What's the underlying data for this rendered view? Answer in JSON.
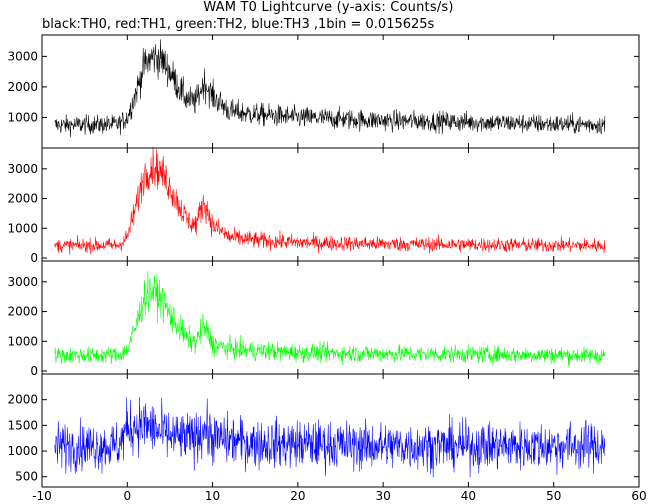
{
  "title": "WAM T0 Lightcurve (y-axis: Counts/s)",
  "subtitle": "black:TH0, red:TH1, green:TH2, blue:TH3 ,1bin = 0.015625s",
  "chart_data": {
    "type": "line",
    "x_range": [
      -10,
      60
    ],
    "x_ticks": [
      -10,
      0,
      10,
      20,
      30,
      40,
      50,
      60
    ],
    "data_x_range": [
      -8.5,
      56
    ],
    "bin_seconds": 0.015625,
    "panels": [
      {
        "name": "TH0",
        "color": "#000000",
        "ylim": [
          0,
          3700
        ],
        "y_ticks": [
          1000,
          2000,
          3000
        ],
        "baseline": 750,
        "noise": 220,
        "envelope": [
          [
            -8.5,
            750
          ],
          [
            -1,
            770
          ],
          [
            0,
            1000
          ],
          [
            1,
            1800
          ],
          [
            2,
            2700
          ],
          [
            3,
            3000
          ],
          [
            4,
            2900
          ],
          [
            5,
            2500
          ],
          [
            6,
            2000
          ],
          [
            7,
            1600
          ],
          [
            8,
            1500
          ],
          [
            9,
            2150
          ],
          [
            10,
            1700
          ],
          [
            12,
            1200
          ],
          [
            15,
            1100
          ],
          [
            20,
            1000
          ],
          [
            30,
            900
          ],
          [
            40,
            850
          ],
          [
            50,
            780
          ],
          [
            56,
            760
          ]
        ]
      },
      {
        "name": "TH1",
        "color": "#ff0000",
        "ylim": [
          -100,
          3700
        ],
        "y_ticks": [
          0,
          1000,
          2000,
          3000
        ],
        "baseline": 420,
        "noise": 170,
        "envelope": [
          [
            -8.5,
            420
          ],
          [
            -1,
            430
          ],
          [
            0,
            700
          ],
          [
            1,
            1700
          ],
          [
            2,
            2800
          ],
          [
            3,
            3100
          ],
          [
            4,
            2900
          ],
          [
            5,
            2400
          ],
          [
            6,
            1800
          ],
          [
            7,
            1300
          ],
          [
            8,
            1100
          ],
          [
            9,
            1900
          ],
          [
            10,
            1100
          ],
          [
            12,
            700
          ],
          [
            15,
            600
          ],
          [
            20,
            520
          ],
          [
            30,
            470
          ],
          [
            40,
            450
          ],
          [
            50,
            430
          ],
          [
            56,
            420
          ]
        ]
      },
      {
        "name": "TH2",
        "color": "#00ff00",
        "ylim": [
          -100,
          3700
        ],
        "y_ticks": [
          0,
          1000,
          2000,
          3000
        ],
        "baseline": 520,
        "noise": 200,
        "envelope": [
          [
            -8.5,
            520
          ],
          [
            -1,
            540
          ],
          [
            0,
            700
          ],
          [
            1,
            1500
          ],
          [
            2,
            2500
          ],
          [
            3,
            2700
          ],
          [
            4,
            2400
          ],
          [
            5,
            1900
          ],
          [
            6,
            1500
          ],
          [
            7,
            1100
          ],
          [
            8,
            950
          ],
          [
            9,
            1500
          ],
          [
            10,
            900
          ],
          [
            12,
            750
          ],
          [
            15,
            680
          ],
          [
            20,
            620
          ],
          [
            30,
            580
          ],
          [
            40,
            560
          ],
          [
            50,
            540
          ],
          [
            56,
            520
          ]
        ]
      },
      {
        "name": "TH3",
        "color": "#0000ff",
        "ylim": [
          300,
          2500
        ],
        "y_ticks": [
          500,
          1000,
          1500,
          2000
        ],
        "baseline": 1100,
        "noise": 330,
        "envelope": [
          [
            -8.5,
            1100
          ],
          [
            -1,
            1100
          ],
          [
            0,
            1450
          ],
          [
            1,
            1500
          ],
          [
            2,
            1500
          ],
          [
            3,
            1450
          ],
          [
            4,
            1350
          ],
          [
            6,
            1250
          ],
          [
            8,
            1250
          ],
          [
            9,
            1450
          ],
          [
            10,
            1250
          ],
          [
            15,
            1150
          ],
          [
            30,
            1100
          ],
          [
            56,
            1100
          ]
        ]
      }
    ]
  }
}
